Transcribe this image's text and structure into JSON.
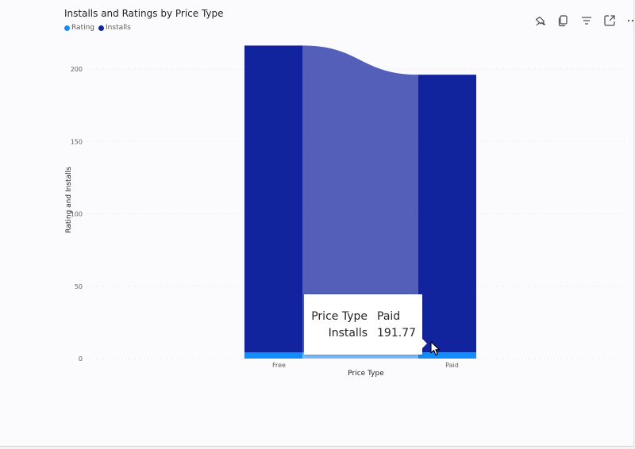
{
  "visual": {
    "title": "Installs and Ratings by Price Type",
    "legend": [
      {
        "label": "Rating",
        "color": "#118DFF"
      },
      {
        "label": "Installs",
        "color": "#12239E"
      }
    ],
    "toolbar": [
      "pin-icon",
      "copy-icon",
      "filter-icon",
      "focus-mode-icon",
      "more-options-icon"
    ]
  },
  "tooltip": {
    "rows": [
      {
        "key": "Price Type",
        "value": "Paid"
      },
      {
        "key": "Installs",
        "value": "191.77"
      }
    ]
  },
  "chart_data": {
    "type": "bar",
    "subtype": "ribbon (stacked columns with ribbons between categories)",
    "title": "Installs and Ratings by Price Type",
    "xlabel": "Price Type",
    "ylabel": "Rating and Installs",
    "categories": [
      "Free",
      "Paid"
    ],
    "series": [
      {
        "name": "Rating",
        "values": [
          4.2,
          4.3
        ],
        "color": "#118DFF"
      },
      {
        "name": "Installs",
        "values": [
          212,
          191.77
        ],
        "color": "#12239E"
      }
    ],
    "ylim": [
      0,
      200
    ],
    "yticks": [
      0,
      50,
      100,
      150,
      200
    ],
    "grid": true,
    "legend_position": "top-left"
  }
}
